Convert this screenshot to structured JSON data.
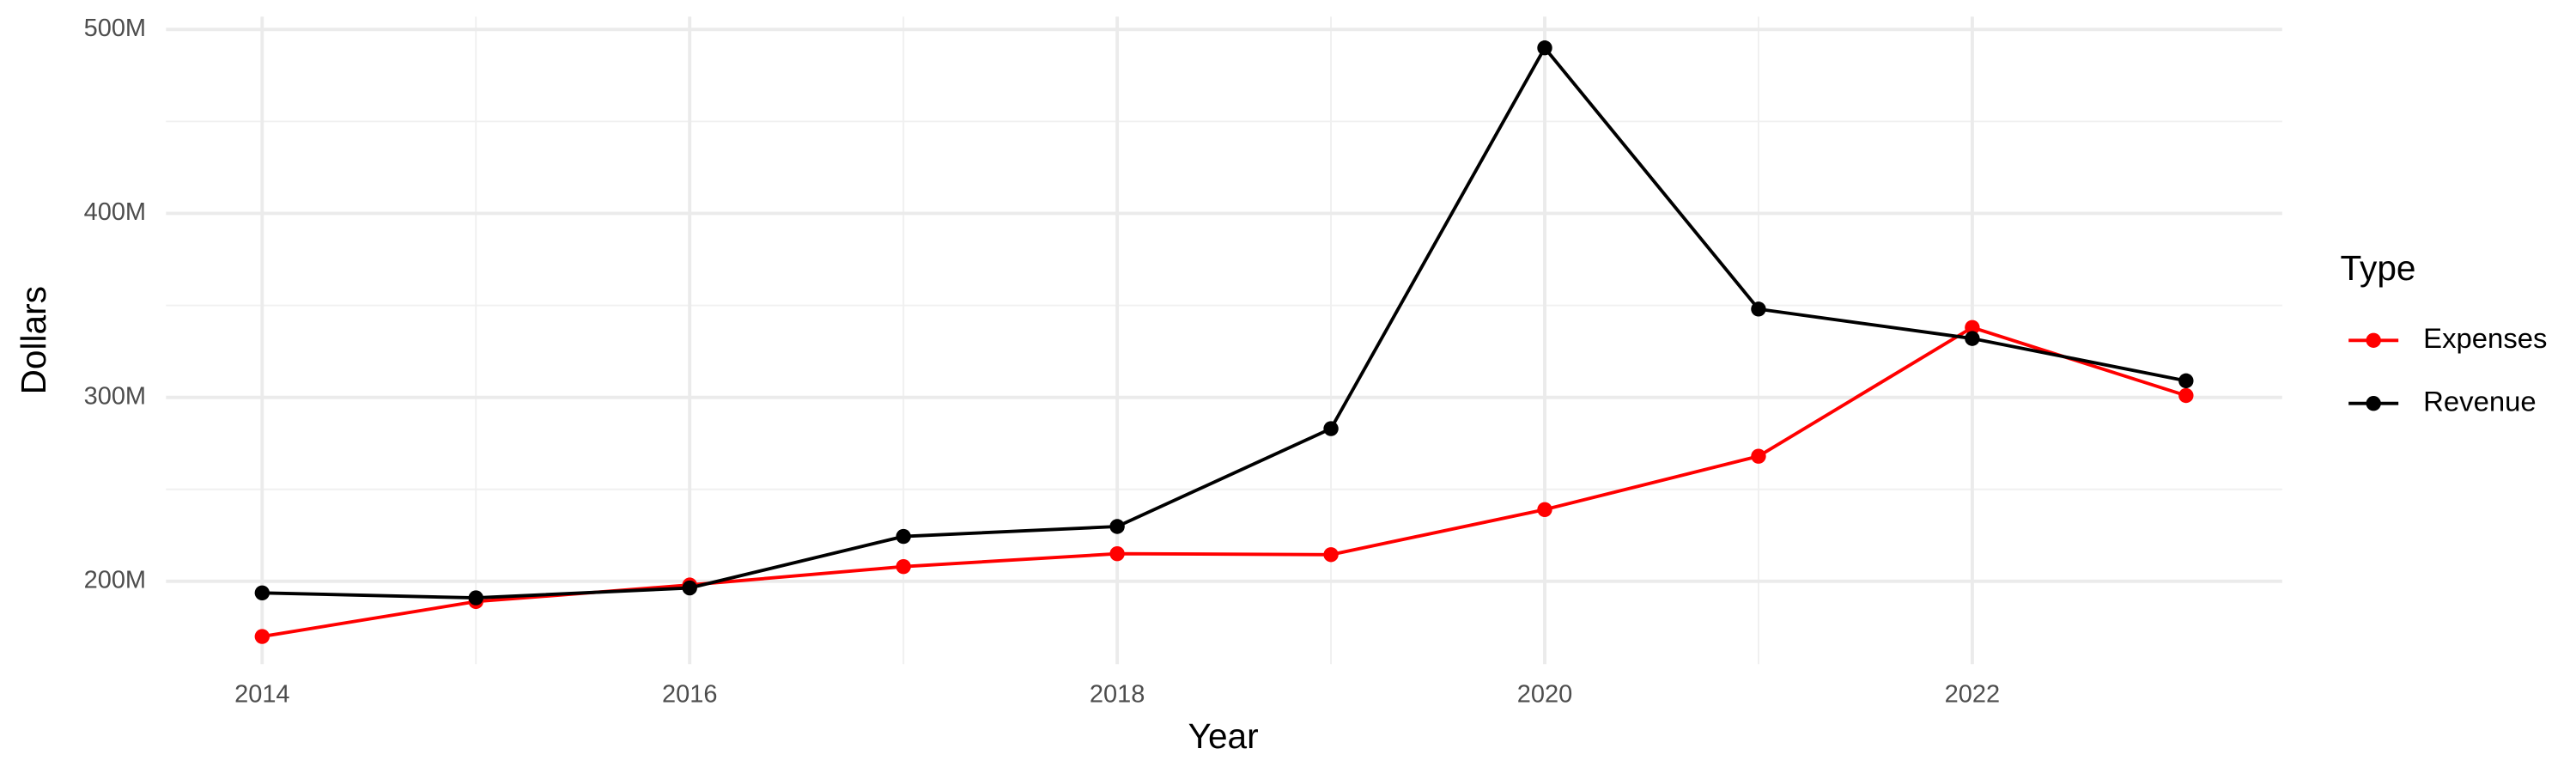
{
  "chart_data": {
    "type": "line",
    "x_label": "Year",
    "y_label": "Dollars",
    "x": [
      2014,
      2015,
      2016,
      2017,
      2018,
      2019,
      2020,
      2021,
      2022,
      2023
    ],
    "series": [
      {
        "name": "Expenses",
        "color": "#ff0000",
        "values": [
          170000000,
          189000000,
          198000000,
          208000000,
          215000000,
          214500000,
          239000000,
          268000000,
          338000000,
          301000000
        ]
      },
      {
        "name": "Revenue",
        "color": "#000000",
        "values": [
          193700000,
          191000000,
          196400000,
          224400000,
          229800000,
          283000000,
          490000000,
          348000000,
          332000000,
          309000000
        ]
      }
    ],
    "xlim": [
      2013.55,
      2023.45
    ],
    "xticks": [
      2014,
      2016,
      2018,
      2020,
      2022
    ],
    "ylim": [
      155000000,
      507000000
    ],
    "yticks": [
      {
        "value": 200000000,
        "label": "200M"
      },
      {
        "value": 300000000,
        "label": "300M"
      },
      {
        "value": 400000000,
        "label": "400M"
      },
      {
        "value": 500000000,
        "label": "500M"
      }
    ],
    "grid": true,
    "legend_title": "Type",
    "legend_position": "right"
  }
}
